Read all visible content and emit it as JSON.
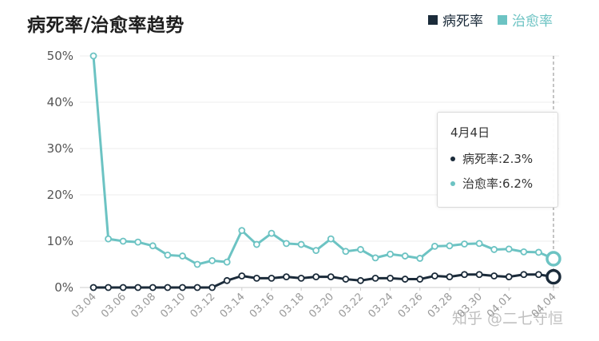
{
  "title": "病死率/治愈率趋势",
  "legend": {
    "items": [
      {
        "label": "病死率",
        "color": "#1b2b3a"
      },
      {
        "label": "治愈率",
        "color": "#6cc3c3"
      }
    ]
  },
  "tooltip": {
    "date": "4月4日",
    "rows": [
      {
        "label": "病死率:2.3%",
        "color": "#1b2b3a"
      },
      {
        "label": "治愈率:6.2%",
        "color": "#6cc3c3"
      }
    ]
  },
  "watermark": "知乎 @二七守恒",
  "chart_data": {
    "type": "line",
    "title": "病死率/治愈率趋势",
    "x": [
      "03.04",
      "03.05",
      "03.06",
      "03.07",
      "03.08",
      "03.09",
      "03.10",
      "03.11",
      "03.12",
      "03.13",
      "03.14",
      "03.15",
      "03.16",
      "03.17",
      "03.18",
      "03.19",
      "03.20",
      "03.21",
      "03.22",
      "03.23",
      "03.24",
      "03.25",
      "03.26",
      "03.27",
      "03.28",
      "03.29",
      "03.30",
      "03.31",
      "04.01",
      "04.02",
      "04.03",
      "04.04"
    ],
    "x_tick_labels": [
      "03.04",
      "03.06",
      "03.08",
      "03.10",
      "03.12",
      "03.14",
      "03.16",
      "03.18",
      "03.20",
      "03.22",
      "03.24",
      "03.26",
      "03.28",
      "03.30",
      "04.01",
      "04.04"
    ],
    "y_tick_labels": [
      "0%",
      "10%",
      "20%",
      "30%",
      "40%",
      "50%"
    ],
    "ylim": [
      0,
      50
    ],
    "grid": true,
    "legend_position": "top-right",
    "series": [
      {
        "name": "病死率",
        "color": "#1b2b3a",
        "values": [
          0,
          0,
          0,
          0,
          0,
          0,
          0,
          0,
          0,
          1.5,
          2.5,
          2,
          2,
          2.3,
          2,
          2.3,
          2.3,
          1.8,
          1.5,
          2,
          2,
          1.8,
          1.8,
          2.5,
          2.3,
          2.8,
          2.8,
          2.5,
          2.3,
          2.8,
          2.8,
          2.3
        ]
      },
      {
        "name": "治愈率",
        "color": "#6cc3c3",
        "values": [
          50,
          10.5,
          10,
          9.8,
          9,
          7,
          6.8,
          5,
          5.8,
          5.5,
          12.3,
          9.3,
          11.7,
          9.5,
          9.3,
          8,
          10.5,
          7.8,
          8.2,
          6.4,
          7.2,
          6.8,
          6.3,
          8.9,
          9,
          9.4,
          9.5,
          8.2,
          8.3,
          7.7,
          7.6,
          6.2
        ]
      }
    ]
  }
}
